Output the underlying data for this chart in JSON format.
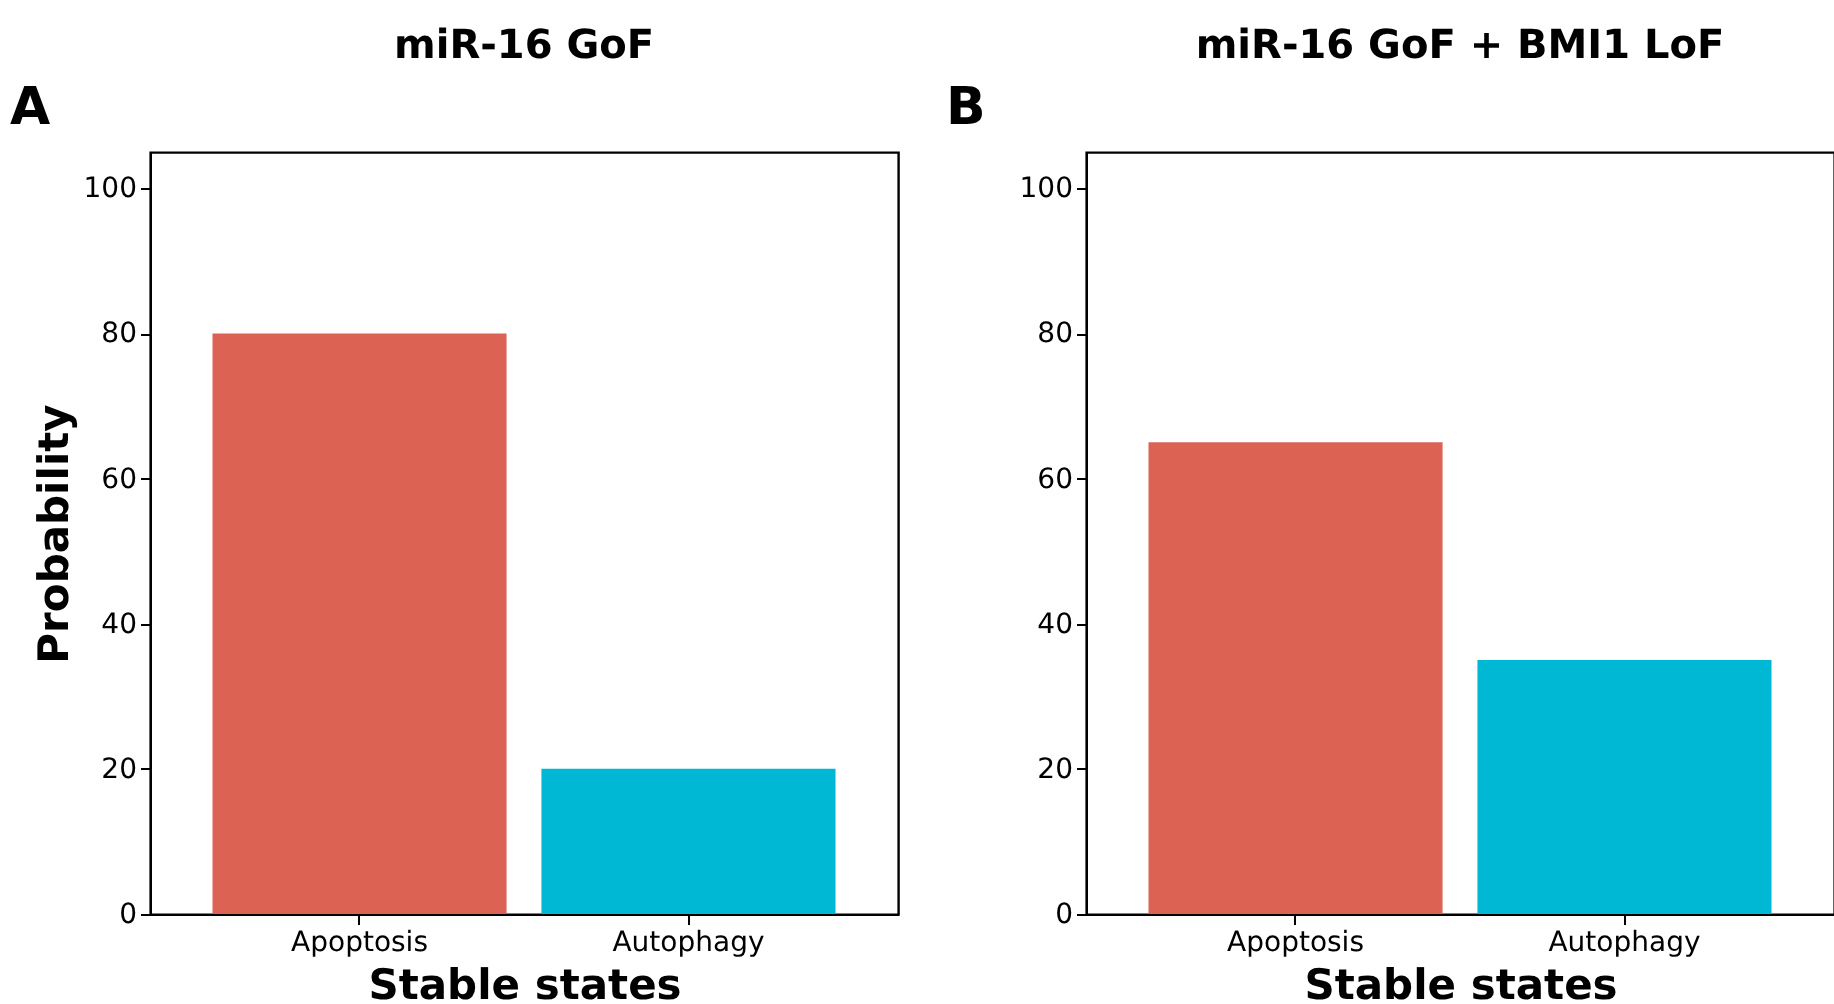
{
  "chart_data": [
    {
      "type": "bar",
      "title": "miR-16 GoF",
      "xlabel": "Stable states",
      "ylabel": "Probability",
      "annotations": [
        "A"
      ],
      "categories": [
        "Apoptosis",
        "Autophagy"
      ],
      "values": [
        80,
        20
      ],
      "colors": [
        "#dc6353",
        "#00b8d4"
      ],
      "ylim": [
        0,
        105
      ],
      "yticks": [
        0,
        20,
        40,
        60,
        80,
        100
      ],
      "grid": false
    },
    {
      "type": "bar",
      "title": "miR-16 GoF + BMI1 LoF",
      "xlabel": "Stable states",
      "annotations": [
        "B"
      ],
      "categories": [
        "Apoptosis",
        "Autophagy"
      ],
      "values": [
        65,
        35
      ],
      "colors": [
        "#dc6353",
        "#00b8d4"
      ],
      "ylim": [
        0,
        105
      ],
      "yticks": [
        0,
        20,
        40,
        60,
        80,
        100
      ],
      "grid": false
    }
  ]
}
